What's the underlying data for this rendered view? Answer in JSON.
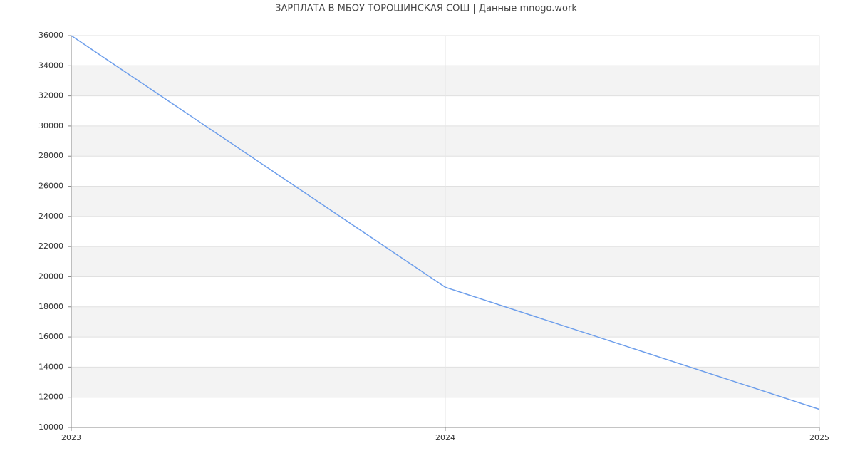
{
  "chart_data": {
    "type": "line",
    "title": "ЗАРПЛАТА В МБОУ ТОРОШИНСКАЯ СОШ | Данные mnogo.work",
    "x": [
      2023,
      2024,
      2025
    ],
    "series": [
      {
        "color": "#6d9eeb",
        "values": [
          36000,
          19300,
          11200
        ]
      }
    ],
    "xlim": [
      2023,
      2025
    ],
    "xticks": [
      2023,
      2024,
      2025
    ],
    "ylim": [
      10000,
      36000
    ],
    "yticks": [
      10000,
      12000,
      14000,
      16000,
      18000,
      20000,
      22000,
      24000,
      26000,
      28000,
      30000,
      32000,
      34000,
      36000
    ],
    "grid": true
  }
}
